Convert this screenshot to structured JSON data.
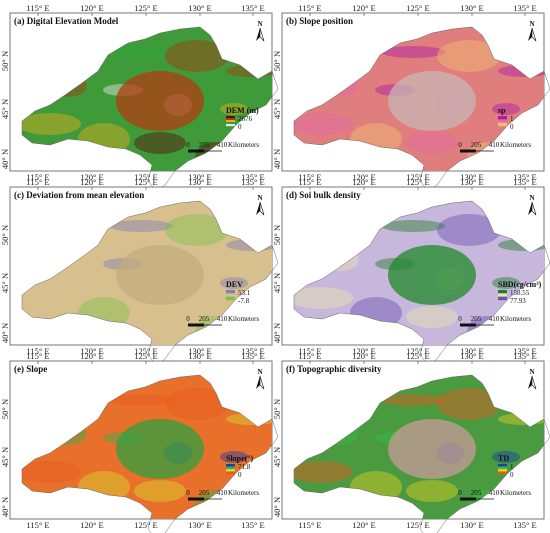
{
  "figure": {
    "lon_ticks": [
      "115° E",
      "120° E",
      "125° E",
      "130° E",
      "135° E"
    ],
    "lat_ticks": [
      "50° N",
      "45° N",
      "40° N"
    ],
    "north_label": "N",
    "scale_bar": {
      "labels": [
        "0",
        "205",
        "410"
      ],
      "unit": "Kilometers"
    },
    "panels": [
      {
        "title": "(a) Digital Elevation Model",
        "legend_title": "DEM (m)",
        "legend_max": "2676",
        "legend_min": "0",
        "legend_colors": [
          "#5a0f0a",
          "#a83a10",
          "#e0b020",
          "#2fa53a",
          "#e8e8e8"
        ],
        "map_fill": "#3f9a3a",
        "map_accent": "#b23c12"
      },
      {
        "title": "(b) Slope position",
        "legend_title": "sp",
        "legend_max": "1",
        "legend_min": "0",
        "legend_colors": [
          "#b01ca8",
          "#e26aa8",
          "#f0c070"
        ],
        "map_fill": "#e07d7d",
        "map_accent": "#c8b6b6"
      },
      {
        "title": "(c) Deviation from mean elevation",
        "legend_title": "DEV",
        "legend_max": "53.1",
        "legend_min": "-7.8",
        "legend_colors": [
          "#7f7fb8",
          "#d7c08e",
          "#7ec04a"
        ],
        "map_fill": "#d7c08e",
        "map_accent": "#c3ad7e"
      },
      {
        "title": "(d) Soi bulk density",
        "legend_title": "SBD(cg/cm³)",
        "legend_max": "158.55",
        "legend_min": "77.93",
        "legend_colors": [
          "#1f7f2a",
          "#e9e4b0",
          "#6b55b0"
        ],
        "map_fill": "#c8b7dc",
        "map_accent": "#1f8a2a"
      },
      {
        "title": "(e) Slope",
        "legend_title": "Slope(°)",
        "legend_max": "71.8",
        "legend_min": "0",
        "legend_colors": [
          "#1a3fb0",
          "#38b04a",
          "#d8d830",
          "#e85a20"
        ],
        "map_fill": "#e8702a",
        "map_accent": "#2fa040"
      },
      {
        "title": "(f) Topographic diversity",
        "legend_title": "TD",
        "legend_max": "1",
        "legend_min": "0",
        "legend_colors": [
          "#1a3fb0",
          "#38c040",
          "#e0d020",
          "#e65a20"
        ],
        "map_fill": "#4a9a40",
        "map_accent": "#c89a9a"
      }
    ]
  }
}
